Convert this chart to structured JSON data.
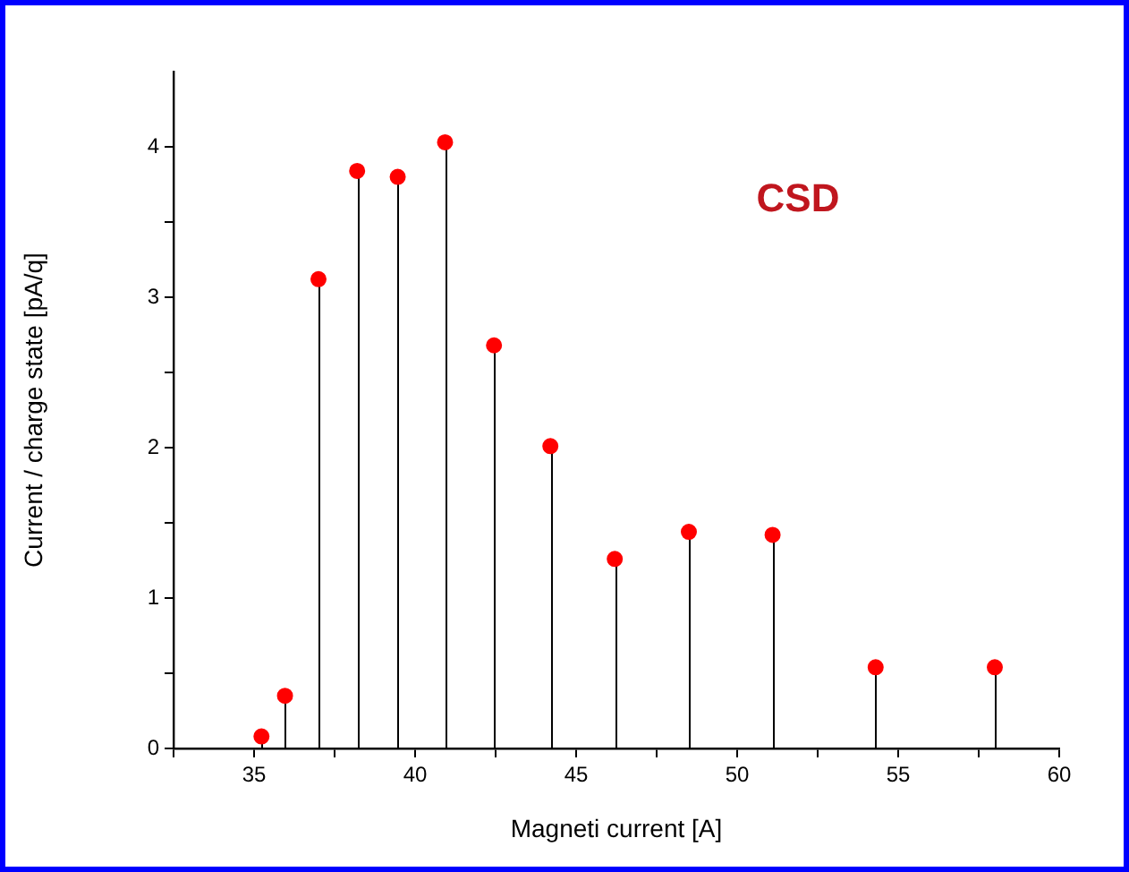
{
  "chart_data": {
    "type": "lollipop",
    "xlabel": "Magneti current [A]",
    "ylabel": "Current / charge state [pA/q]",
    "annotations": [
      "CSD"
    ],
    "x": [
      35.23,
      35.96,
      37.0,
      38.2,
      39.46,
      40.93,
      42.45,
      44.2,
      46.2,
      48.5,
      51.1,
      54.3,
      58.0
    ],
    "series": [
      {
        "color": "#ff0000",
        "values": [
          0.08,
          0.35,
          3.12,
          3.84,
          3.8,
          4.03,
          2.68,
          2.01,
          1.26,
          1.44,
          1.42,
          0.54,
          0.54
        ]
      }
    ],
    "xlim": [
      32.5,
      60
    ],
    "ylim": [
      0,
      4.5
    ],
    "xticks": [
      {
        "value": 32.5,
        "label": null
      },
      35,
      {
        "value": 37.5,
        "label": null
      },
      40,
      {
        "value": 42.5,
        "label": null
      },
      45,
      {
        "value": 47.5,
        "label": null
      },
      50,
      {
        "value": 52.5,
        "label": null
      },
      55,
      {
        "value": 57.5,
        "label": null
      },
      60
    ],
    "yticks": [
      0,
      {
        "value": 0.5,
        "label": null
      },
      1,
      {
        "value": 1.5,
        "label": null
      },
      2,
      {
        "value": 2.5,
        "label": null
      },
      3,
      {
        "value": 3.5,
        "label": null
      },
      4
    ],
    "grid": false,
    "legend": false,
    "marker": "circle"
  }
}
